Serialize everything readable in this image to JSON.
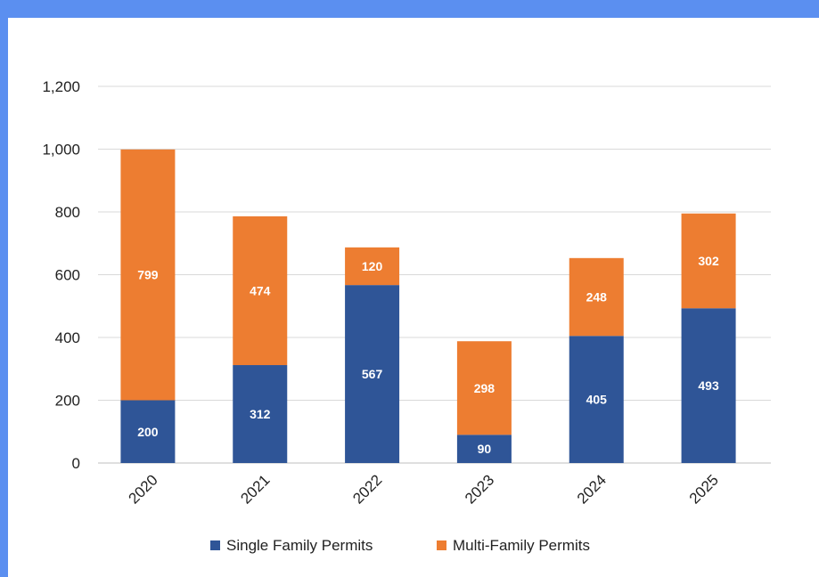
{
  "colors": {
    "single_family": "#2f5597",
    "multi_family": "#ed7d31",
    "frame_accent": "#5b8ff0",
    "grid": "#d9d9d9"
  },
  "chart_data": {
    "type": "bar",
    "stacked": true,
    "categories": [
      "2020",
      "2021",
      "2022",
      "2023",
      "2024",
      "2025"
    ],
    "series": [
      {
        "name": "Single Family Permits",
        "values": [
          200,
          312,
          567,
          90,
          405,
          493
        ],
        "color": "#2f5597"
      },
      {
        "name": "Multi-Family Permits",
        "values": [
          799,
          474,
          120,
          298,
          248,
          302
        ],
        "color": "#ed7d31"
      }
    ],
    "ylim": [
      0,
      1200
    ],
    "yticks": [
      0,
      200,
      400,
      600,
      800,
      1000,
      1200
    ],
    "ytick_labels": [
      "0",
      "200",
      "400",
      "600",
      "800",
      "1,000",
      "1,200"
    ],
    "grid": true,
    "legend_position": "bottom",
    "data_labels": true
  }
}
